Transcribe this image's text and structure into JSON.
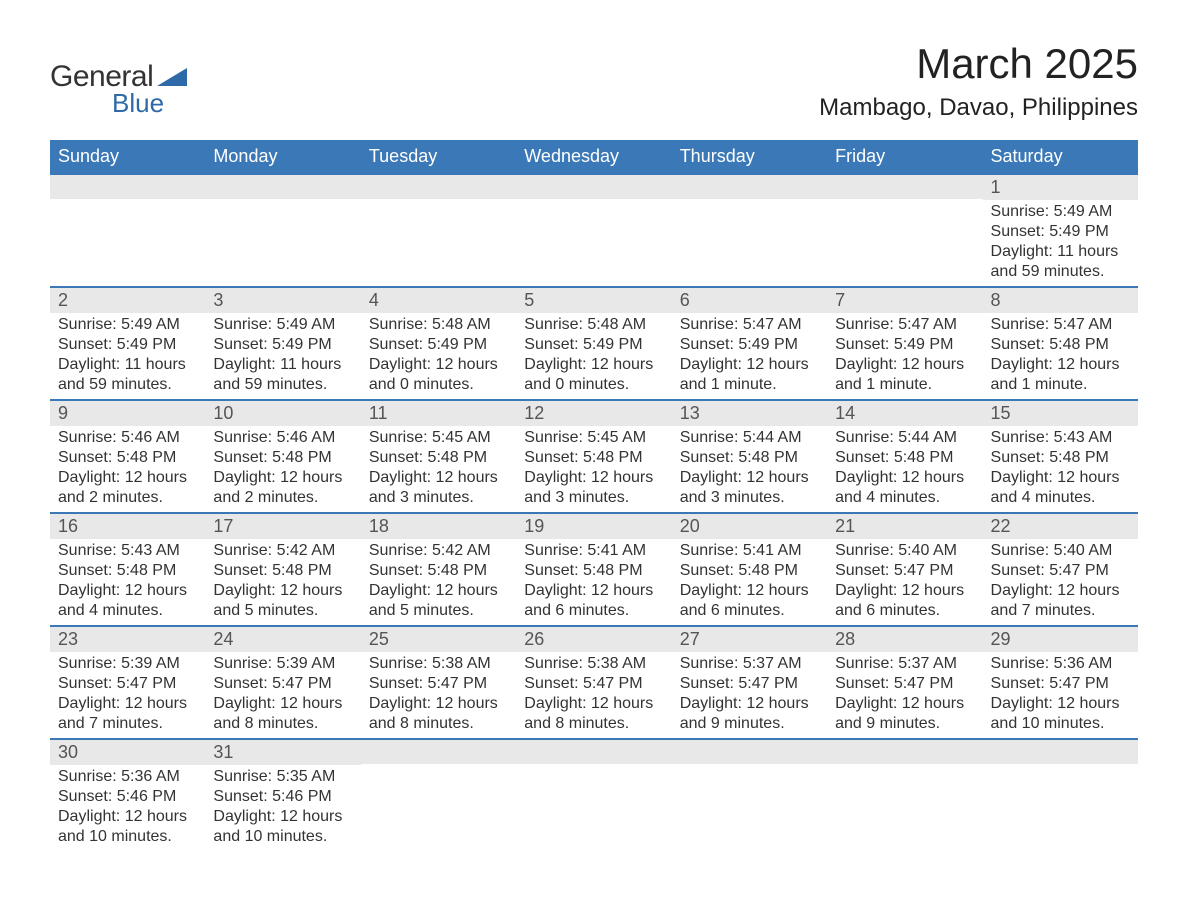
{
  "brand": {
    "text_general": "General",
    "text_blue": "Blue",
    "accent_color": "#2e69a8"
  },
  "header": {
    "month_title": "March 2025",
    "location": "Mambago, Davao, Philippines"
  },
  "calendar": {
    "header_bg": "#3b78b7",
    "header_fg": "#ffffff",
    "row_separator_color": "#3b78b7",
    "daynum_bg": "#e8e8e8",
    "daynum_fg": "#555555",
    "body_bg": "#ffffff",
    "body_fg": "#333333",
    "font_size_header": 18,
    "font_size_daynum": 18,
    "font_size_body": 16,
    "days_of_week": [
      "Sunday",
      "Monday",
      "Tuesday",
      "Wednesday",
      "Thursday",
      "Friday",
      "Saturday"
    ],
    "weeks": [
      [
        {
          "num": "",
          "lines": []
        },
        {
          "num": "",
          "lines": []
        },
        {
          "num": "",
          "lines": []
        },
        {
          "num": "",
          "lines": []
        },
        {
          "num": "",
          "lines": []
        },
        {
          "num": "",
          "lines": []
        },
        {
          "num": "1",
          "lines": [
            "Sunrise: 5:49 AM",
            "Sunset: 5:49 PM",
            "Daylight: 11 hours and 59 minutes."
          ]
        }
      ],
      [
        {
          "num": "2",
          "lines": [
            "Sunrise: 5:49 AM",
            "Sunset: 5:49 PM",
            "Daylight: 11 hours and 59 minutes."
          ]
        },
        {
          "num": "3",
          "lines": [
            "Sunrise: 5:49 AM",
            "Sunset: 5:49 PM",
            "Daylight: 11 hours and 59 minutes."
          ]
        },
        {
          "num": "4",
          "lines": [
            "Sunrise: 5:48 AM",
            "Sunset: 5:49 PM",
            "Daylight: 12 hours and 0 minutes."
          ]
        },
        {
          "num": "5",
          "lines": [
            "Sunrise: 5:48 AM",
            "Sunset: 5:49 PM",
            "Daylight: 12 hours and 0 minutes."
          ]
        },
        {
          "num": "6",
          "lines": [
            "Sunrise: 5:47 AM",
            "Sunset: 5:49 PM",
            "Daylight: 12 hours and 1 minute."
          ]
        },
        {
          "num": "7",
          "lines": [
            "Sunrise: 5:47 AM",
            "Sunset: 5:49 PM",
            "Daylight: 12 hours and 1 minute."
          ]
        },
        {
          "num": "8",
          "lines": [
            "Sunrise: 5:47 AM",
            "Sunset: 5:48 PM",
            "Daylight: 12 hours and 1 minute."
          ]
        }
      ],
      [
        {
          "num": "9",
          "lines": [
            "Sunrise: 5:46 AM",
            "Sunset: 5:48 PM",
            "Daylight: 12 hours and 2 minutes."
          ]
        },
        {
          "num": "10",
          "lines": [
            "Sunrise: 5:46 AM",
            "Sunset: 5:48 PM",
            "Daylight: 12 hours and 2 minutes."
          ]
        },
        {
          "num": "11",
          "lines": [
            "Sunrise: 5:45 AM",
            "Sunset: 5:48 PM",
            "Daylight: 12 hours and 3 minutes."
          ]
        },
        {
          "num": "12",
          "lines": [
            "Sunrise: 5:45 AM",
            "Sunset: 5:48 PM",
            "Daylight: 12 hours and 3 minutes."
          ]
        },
        {
          "num": "13",
          "lines": [
            "Sunrise: 5:44 AM",
            "Sunset: 5:48 PM",
            "Daylight: 12 hours and 3 minutes."
          ]
        },
        {
          "num": "14",
          "lines": [
            "Sunrise: 5:44 AM",
            "Sunset: 5:48 PM",
            "Daylight: 12 hours and 4 minutes."
          ]
        },
        {
          "num": "15",
          "lines": [
            "Sunrise: 5:43 AM",
            "Sunset: 5:48 PM",
            "Daylight: 12 hours and 4 minutes."
          ]
        }
      ],
      [
        {
          "num": "16",
          "lines": [
            "Sunrise: 5:43 AM",
            "Sunset: 5:48 PM",
            "Daylight: 12 hours and 4 minutes."
          ]
        },
        {
          "num": "17",
          "lines": [
            "Sunrise: 5:42 AM",
            "Sunset: 5:48 PM",
            "Daylight: 12 hours and 5 minutes."
          ]
        },
        {
          "num": "18",
          "lines": [
            "Sunrise: 5:42 AM",
            "Sunset: 5:48 PM",
            "Daylight: 12 hours and 5 minutes."
          ]
        },
        {
          "num": "19",
          "lines": [
            "Sunrise: 5:41 AM",
            "Sunset: 5:48 PM",
            "Daylight: 12 hours and 6 minutes."
          ]
        },
        {
          "num": "20",
          "lines": [
            "Sunrise: 5:41 AM",
            "Sunset: 5:48 PM",
            "Daylight: 12 hours and 6 minutes."
          ]
        },
        {
          "num": "21",
          "lines": [
            "Sunrise: 5:40 AM",
            "Sunset: 5:47 PM",
            "Daylight: 12 hours and 6 minutes."
          ]
        },
        {
          "num": "22",
          "lines": [
            "Sunrise: 5:40 AM",
            "Sunset: 5:47 PM",
            "Daylight: 12 hours and 7 minutes."
          ]
        }
      ],
      [
        {
          "num": "23",
          "lines": [
            "Sunrise: 5:39 AM",
            "Sunset: 5:47 PM",
            "Daylight: 12 hours and 7 minutes."
          ]
        },
        {
          "num": "24",
          "lines": [
            "Sunrise: 5:39 AM",
            "Sunset: 5:47 PM",
            "Daylight: 12 hours and 8 minutes."
          ]
        },
        {
          "num": "25",
          "lines": [
            "Sunrise: 5:38 AM",
            "Sunset: 5:47 PM",
            "Daylight: 12 hours and 8 minutes."
          ]
        },
        {
          "num": "26",
          "lines": [
            "Sunrise: 5:38 AM",
            "Sunset: 5:47 PM",
            "Daylight: 12 hours and 8 minutes."
          ]
        },
        {
          "num": "27",
          "lines": [
            "Sunrise: 5:37 AM",
            "Sunset: 5:47 PM",
            "Daylight: 12 hours and 9 minutes."
          ]
        },
        {
          "num": "28",
          "lines": [
            "Sunrise: 5:37 AM",
            "Sunset: 5:47 PM",
            "Daylight: 12 hours and 9 minutes."
          ]
        },
        {
          "num": "29",
          "lines": [
            "Sunrise: 5:36 AM",
            "Sunset: 5:47 PM",
            "Daylight: 12 hours and 10 minutes."
          ]
        }
      ],
      [
        {
          "num": "30",
          "lines": [
            "Sunrise: 5:36 AM",
            "Sunset: 5:46 PM",
            "Daylight: 12 hours and 10 minutes."
          ]
        },
        {
          "num": "31",
          "lines": [
            "Sunrise: 5:35 AM",
            "Sunset: 5:46 PM",
            "Daylight: 12 hours and 10 minutes."
          ]
        },
        {
          "num": "",
          "lines": []
        },
        {
          "num": "",
          "lines": []
        },
        {
          "num": "",
          "lines": []
        },
        {
          "num": "",
          "lines": []
        },
        {
          "num": "",
          "lines": []
        }
      ]
    ]
  }
}
